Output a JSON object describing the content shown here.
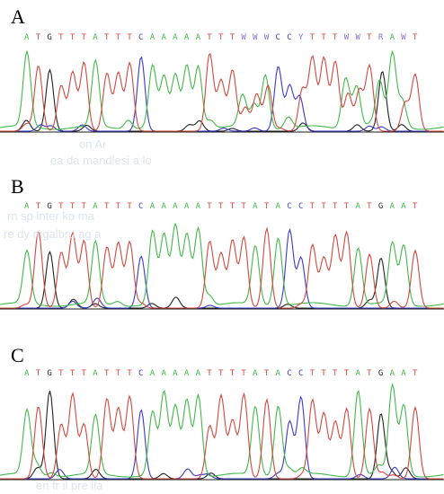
{
  "colors": {
    "A": "#43b84b",
    "C": "#3a3acb",
    "G": "#222222",
    "T": "#d2483f",
    "ambiguous": "#8870cc",
    "baseline": "#1a1a1a"
  },
  "panels": [
    {
      "label": "A",
      "sequence": [
        "A",
        "T",
        "G",
        "T",
        "T",
        "T",
        "A",
        "T",
        "T",
        "T",
        "C",
        "A",
        "A",
        "A",
        "A",
        "A",
        "T",
        "T",
        "T",
        "W",
        "W",
        "W",
        "C",
        "C",
        "Y",
        "T",
        "T",
        "T",
        "W",
        "W",
        "T",
        "R",
        "A",
        "W",
        "T"
      ]
    },
    {
      "label": "B",
      "sequence": [
        "A",
        "T",
        "G",
        "T",
        "T",
        "T",
        "A",
        "T",
        "T",
        "T",
        "C",
        "A",
        "A",
        "A",
        "A",
        "A",
        "T",
        "T",
        "T",
        "T",
        "A",
        "T",
        "A",
        "C",
        "C",
        "T",
        "T",
        "T",
        "T",
        "A",
        "T",
        "G",
        "A",
        "A",
        "T"
      ]
    },
    {
      "label": "C",
      "sequence": [
        "A",
        "T",
        "G",
        "T",
        "T",
        "T",
        "A",
        "T",
        "T",
        "T",
        "C",
        "A",
        "A",
        "A",
        "A",
        "A",
        "T",
        "T",
        "T",
        "T",
        "A",
        "T",
        "A",
        "C",
        "C",
        "T",
        "T",
        "T",
        "T",
        "A",
        "T",
        "G",
        "A",
        "A",
        "T"
      ]
    }
  ],
  "watermark_lines": [
    "on Ar",
    "ea da mandlesi a lo",
    "rn sp inter ko ma",
    "re dy mgalbru ag a",
    "en fr il pre ila"
  ]
}
